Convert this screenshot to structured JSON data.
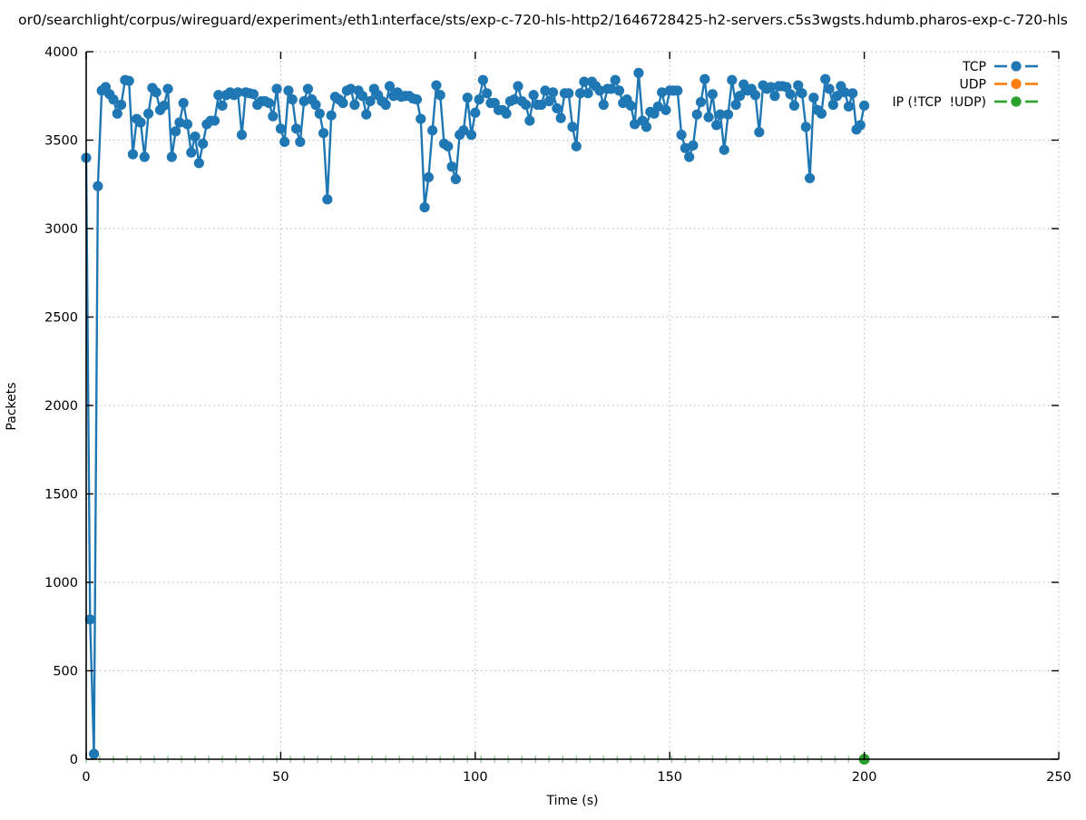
{
  "title": "or0/searchlight/corpus/wireguard/experiment₃/eth1ᵢnterface/sts/exp-c-720-hls-http2/1646728425-h2-servers.c5s3wgsts.hdumb.pharos-exp-c-720-hls",
  "axes": {
    "xlabel": "Time (s)",
    "ylabel": "Packets",
    "x_ticks": [
      0,
      50,
      100,
      150,
      200,
      250
    ],
    "y_ticks": [
      0,
      500,
      1000,
      1500,
      2000,
      2500,
      3000,
      3500,
      4000
    ],
    "xlim": [
      0,
      250
    ],
    "ylim": [
      0,
      4000
    ]
  },
  "legend": {
    "position": "top-right",
    "entries": [
      {
        "label": "TCP",
        "color": "#1f77b4"
      },
      {
        "label": "UDP",
        "color": "#ff7f0e"
      },
      {
        "label": "IP (!TCP  !UDP)",
        "color": "#2ca02c"
      }
    ]
  },
  "chart_data": {
    "type": "line",
    "title": "or0/searchlight/corpus/wireguard/experiment₃/eth1ᵢnterface/sts/exp-c-720-hls-http2/1646728425-h2-servers.c5s3wgsts.hdumb.pharos-exp-c-720-hls",
    "xlabel": "Time (s)",
    "ylabel": "Packets",
    "xlim": [
      0,
      250
    ],
    "ylim": [
      0,
      4000
    ],
    "grid": true,
    "legend_position": "top-right",
    "series": [
      {
        "name": "TCP",
        "color": "#1f77b4",
        "style": "linespoints",
        "points": [
          [
            0,
            3400
          ],
          [
            1,
            790
          ],
          [
            2,
            30
          ],
          [
            3,
            3240
          ],
          [
            4,
            3780
          ],
          [
            5,
            3800
          ],
          [
            6,
            3760
          ],
          [
            7,
            3730
          ],
          [
            8,
            3650
          ],
          [
            9,
            3700
          ],
          [
            10,
            3840
          ],
          [
            11,
            3835
          ],
          [
            12,
            3420
          ],
          [
            13,
            3620
          ],
          [
            14,
            3600
          ],
          [
            15,
            3405
          ],
          [
            16,
            3650
          ],
          [
            17,
            3795
          ],
          [
            18,
            3770
          ],
          [
            19,
            3670
          ],
          [
            20,
            3695
          ],
          [
            21,
            3790
          ],
          [
            22,
            3405
          ],
          [
            23,
            3550
          ],
          [
            24,
            3600
          ],
          [
            25,
            3710
          ],
          [
            26,
            3590
          ],
          [
            27,
            3430
          ],
          [
            28,
            3520
          ],
          [
            29,
            3370
          ],
          [
            30,
            3480
          ],
          [
            31,
            3590
          ],
          [
            32,
            3610
          ],
          [
            33,
            3610
          ],
          [
            34,
            3755
          ],
          [
            35,
            3695
          ],
          [
            36,
            3755
          ],
          [
            37,
            3770
          ],
          [
            38,
            3755
          ],
          [
            39,
            3770
          ],
          [
            40,
            3530
          ],
          [
            41,
            3770
          ],
          [
            42,
            3765
          ],
          [
            43,
            3760
          ],
          [
            44,
            3700
          ],
          [
            45,
            3720
          ],
          [
            46,
            3720
          ],
          [
            47,
            3710
          ],
          [
            48,
            3635
          ],
          [
            49,
            3790
          ],
          [
            50,
            3565
          ],
          [
            51,
            3490
          ],
          [
            52,
            3780
          ],
          [
            53,
            3730
          ],
          [
            54,
            3565
          ],
          [
            55,
            3490
          ],
          [
            56,
            3720
          ],
          [
            57,
            3790
          ],
          [
            58,
            3730
          ],
          [
            59,
            3700
          ],
          [
            60,
            3650
          ],
          [
            61,
            3540
          ],
          [
            62,
            3165
          ],
          [
            63,
            3640
          ],
          [
            64,
            3745
          ],
          [
            65,
            3730
          ],
          [
            66,
            3710
          ],
          [
            67,
            3780
          ],
          [
            68,
            3790
          ],
          [
            69,
            3700
          ],
          [
            70,
            3780
          ],
          [
            71,
            3750
          ],
          [
            72,
            3645
          ],
          [
            73,
            3720
          ],
          [
            74,
            3790
          ],
          [
            75,
            3755
          ],
          [
            76,
            3720
          ],
          [
            77,
            3700
          ],
          [
            78,
            3805
          ],
          [
            79,
            3750
          ],
          [
            80,
            3770
          ],
          [
            81,
            3745
          ],
          [
            82,
            3750
          ],
          [
            83,
            3750
          ],
          [
            84,
            3735
          ],
          [
            85,
            3730
          ],
          [
            86,
            3620
          ],
          [
            87,
            3120
          ],
          [
            88,
            3290
          ],
          [
            89,
            3555
          ],
          [
            90,
            3810
          ],
          [
            91,
            3755
          ],
          [
            92,
            3480
          ],
          [
            93,
            3465
          ],
          [
            94,
            3350
          ],
          [
            95,
            3280
          ],
          [
            96,
            3530
          ],
          [
            97,
            3555
          ],
          [
            98,
            3740
          ],
          [
            99,
            3530
          ],
          [
            100,
            3655
          ],
          [
            101,
            3730
          ],
          [
            102,
            3840
          ],
          [
            103,
            3765
          ],
          [
            104,
            3710
          ],
          [
            105,
            3710
          ],
          [
            106,
            3670
          ],
          [
            107,
            3670
          ],
          [
            108,
            3650
          ],
          [
            109,
            3720
          ],
          [
            110,
            3730
          ],
          [
            111,
            3805
          ],
          [
            112,
            3720
          ],
          [
            113,
            3700
          ],
          [
            114,
            3610
          ],
          [
            115,
            3755
          ],
          [
            116,
            3700
          ],
          [
            117,
            3700
          ],
          [
            118,
            3780
          ],
          [
            119,
            3720
          ],
          [
            120,
            3770
          ],
          [
            121,
            3680
          ],
          [
            122,
            3625
          ],
          [
            123,
            3765
          ],
          [
            124,
            3765
          ],
          [
            125,
            3575
          ],
          [
            126,
            3465
          ],
          [
            127,
            3765
          ],
          [
            128,
            3830
          ],
          [
            129,
            3765
          ],
          [
            130,
            3830
          ],
          [
            131,
            3805
          ],
          [
            132,
            3780
          ],
          [
            133,
            3700
          ],
          [
            134,
            3790
          ],
          [
            135,
            3790
          ],
          [
            136,
            3840
          ],
          [
            137,
            3780
          ],
          [
            138,
            3710
          ],
          [
            139,
            3730
          ],
          [
            140,
            3695
          ],
          [
            141,
            3590
          ],
          [
            142,
            3880
          ],
          [
            143,
            3610
          ],
          [
            144,
            3575
          ],
          [
            145,
            3660
          ],
          [
            146,
            3650
          ],
          [
            147,
            3690
          ],
          [
            148,
            3770
          ],
          [
            149,
            3670
          ],
          [
            150,
            3780
          ],
          [
            151,
            3780
          ],
          [
            152,
            3780
          ],
          [
            153,
            3530
          ],
          [
            154,
            3455
          ],
          [
            155,
            3405
          ],
          [
            156,
            3470
          ],
          [
            157,
            3645
          ],
          [
            158,
            3715
          ],
          [
            159,
            3845
          ],
          [
            160,
            3630
          ],
          [
            161,
            3760
          ],
          [
            162,
            3585
          ],
          [
            163,
            3645
          ],
          [
            164,
            3445
          ],
          [
            165,
            3645
          ],
          [
            166,
            3840
          ],
          [
            167,
            3700
          ],
          [
            168,
            3750
          ],
          [
            169,
            3815
          ],
          [
            170,
            3780
          ],
          [
            171,
            3790
          ],
          [
            172,
            3755
          ],
          [
            173,
            3545
          ],
          [
            174,
            3810
          ],
          [
            175,
            3790
          ],
          [
            176,
            3800
          ],
          [
            177,
            3750
          ],
          [
            178,
            3805
          ],
          [
            179,
            3805
          ],
          [
            180,
            3800
          ],
          [
            181,
            3760
          ],
          [
            182,
            3695
          ],
          [
            183,
            3810
          ],
          [
            184,
            3765
          ],
          [
            185,
            3575
          ],
          [
            186,
            3285
          ],
          [
            187,
            3740
          ],
          [
            188,
            3670
          ],
          [
            189,
            3650
          ],
          [
            190,
            3845
          ],
          [
            191,
            3790
          ],
          [
            192,
            3700
          ],
          [
            193,
            3750
          ],
          [
            194,
            3805
          ],
          [
            195,
            3770
          ],
          [
            196,
            3690
          ],
          [
            197,
            3765
          ],
          [
            198,
            3560
          ],
          [
            199,
            3585
          ],
          [
            200,
            3695
          ]
        ]
      },
      {
        "name": "UDP",
        "color": "#ff7f0e",
        "style": "linespoints",
        "points": []
      },
      {
        "name": "IP (!TCP  !UDP)",
        "color": "#2ca02c",
        "style": "dashed-line-end-marker",
        "constant_value": 0,
        "t_range": [
          0,
          200
        ],
        "points": [
          [
            200,
            0
          ]
        ]
      }
    ]
  }
}
